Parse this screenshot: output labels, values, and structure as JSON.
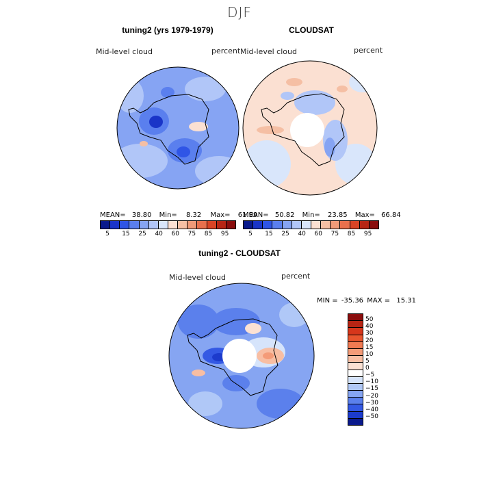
{
  "chart_data": [
    {
      "type": "heatmap",
      "projection": "south-polar-stereographic",
      "title": "tuning2 (yrs 1979-1979)",
      "field": "Mid-level cloud",
      "units": "percent",
      "stats": {
        "mean_label": "MEAN=",
        "mean": "38.80",
        "min_label": "Min=",
        "min": "8.32",
        "max_label": "Max=",
        "max": "61.99"
      },
      "levels": [
        "5",
        "15",
        "25",
        "40",
        "60",
        "75",
        "85",
        "95"
      ],
      "colors": [
        "#0a1a8c",
        "#1a35c8",
        "#2f55e6",
        "#5a7fee",
        "#86a4f3",
        "#b1c6f8",
        "#d9e6fb",
        "#fbe0d2",
        "#f5bfa4",
        "#f09a78",
        "#e8704d",
        "#d94425",
        "#b72514",
        "#8a0d0d"
      ]
    },
    {
      "type": "heatmap",
      "projection": "south-polar-stereographic",
      "title": "CLOUDSAT",
      "field": "Mid-level cloud",
      "units": "percent",
      "stats": {
        "mean_label": "MEAN=",
        "mean": "50.82",
        "min_label": "Min=",
        "min": "23.85",
        "max_label": "Max=",
        "max": "66.84"
      },
      "levels": [
        "5",
        "15",
        "25",
        "40",
        "60",
        "75",
        "85",
        "95"
      ],
      "colors": [
        "#0a1a8c",
        "#1a35c8",
        "#2f55e6",
        "#5a7fee",
        "#86a4f3",
        "#b1c6f8",
        "#d9e6fb",
        "#fbe0d2",
        "#f5bfa4",
        "#f09a78",
        "#e8704d",
        "#d94425",
        "#b72514",
        "#8a0d0d"
      ]
    },
    {
      "type": "heatmap",
      "projection": "south-polar-stereographic",
      "title": "tuning2 - CLOUDSAT",
      "field": "Mid-level cloud",
      "units": "percent",
      "stats": {
        "min_label": "MIN =",
        "min": "-35.36",
        "max_label": "MAX =",
        "max": "15.31"
      },
      "levels": [
        "50",
        "40",
        "30",
        "20",
        "15",
        "10",
        "5",
        "0",
        "−5",
        "−10",
        "−15",
        "−20",
        "−30",
        "−40",
        "−50"
      ],
      "colors": [
        "#8a0d0d",
        "#b72514",
        "#d6361b",
        "#e8552e",
        "#f07a52",
        "#f49b78",
        "#f8bea3",
        "#fbe1d3",
        "#ffffff",
        "#d6e4fb",
        "#b0c8f7",
        "#86a5f2",
        "#5b80ec",
        "#3459e4",
        "#1c3bcc",
        "#0a1a8c"
      ]
    }
  ],
  "page": {
    "title": "DJF"
  }
}
